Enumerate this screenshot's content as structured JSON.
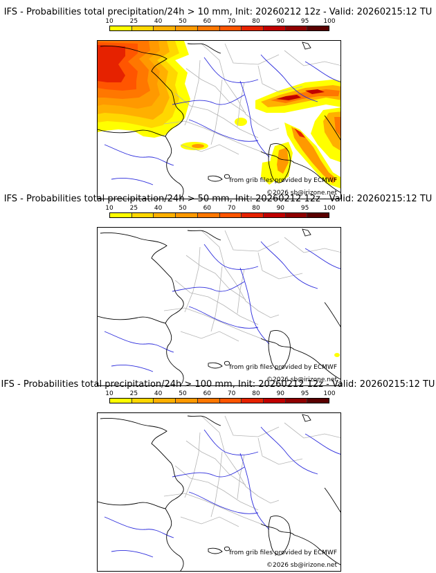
{
  "colors": {
    "scale": [
      "#ffff00",
      "#ffd700",
      "#ffb000",
      "#ff9900",
      "#ff7700",
      "#ff5500",
      "#e62200",
      "#c00000",
      "#8f0000",
      "#5a0000"
    ],
    "coast": "#000000",
    "border": "#b4b4b4",
    "river": "#2a2adc"
  },
  "panels": [
    {
      "title": "IFS - Probabilities total precipitation/24h > 10 mm, Init: 20260212 12z - Valid: 20260215:12 TU",
      "scale_labels": [
        "10",
        "25",
        "40",
        "50",
        "60",
        "70",
        "80",
        "90",
        "95",
        "100"
      ],
      "credit_source": "from grib files provided by ECMWF",
      "credit_copyright": "©2026 sb@irizone.net"
    },
    {
      "title": "IFS - Probabilities total precipitation/24h > 50 mm, Init: 20260212 12z - Valid: 20260215:12 TU",
      "scale_labels": [
        "10",
        "25",
        "40",
        "50",
        "60",
        "70",
        "80",
        "90",
        "95",
        "100"
      ],
      "credit_source": "from grib files provided by ECMWF",
      "credit_copyright": "©2026 sb@irizone.net"
    },
    {
      "title": "IFS - Probabilities total precipitation/24h > 100 mm, Init: 20260212 12z - Valid: 20260215:12 TU",
      "scale_labels": [
        "10",
        "25",
        "40",
        "50",
        "60",
        "70",
        "80",
        "90",
        "95",
        "100"
      ],
      "credit_source": "from grib files provided by ECMWF",
      "credit_copyright": "©2026 sb@irizone.net"
    }
  ]
}
